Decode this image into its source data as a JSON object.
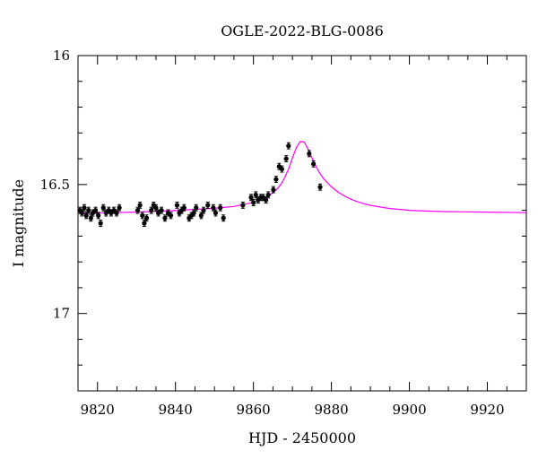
{
  "chart_data": {
    "type": "scatter",
    "title": "OGLE-2022-BLG-0086",
    "xlabel": "HJD - 2450000",
    "ylabel": "I magnitude",
    "xlim": [
      9815,
      9930
    ],
    "ylim": [
      17.3,
      16.0
    ],
    "y_inverted": true,
    "x_major_ticks": [
      9820,
      9840,
      9860,
      9880,
      9900,
      9920
    ],
    "x_tick_labels": [
      "9820",
      "9840",
      "9860",
      "9880",
      "9900",
      "9920"
    ],
    "y_major_ticks": [
      16.0,
      16.5,
      17.0
    ],
    "y_tick_labels": [
      "16",
      "16.5",
      "17"
    ],
    "grid": false,
    "colors": {
      "data": "#000000",
      "model": "#ff00ff"
    },
    "series": [
      {
        "kind": "data",
        "marker": "filled-circle",
        "x": [
          9815.5,
          9816.0,
          9816.6,
          9817.1,
          9817.7,
          9818.3,
          9818.8,
          9819.5,
          9820.2,
          9820.8,
          9821.5,
          9822.2,
          9822.9,
          9823.5,
          9824.2,
          9824.9,
          9825.6,
          9830.3,
          9830.9,
          9831.5,
          9832.0,
          9832.6,
          9833.8,
          9834.4,
          9835.0,
          9835.6,
          9836.4,
          9837.3,
          9838.1,
          9838.8,
          9840.4,
          9841.0,
          9841.6,
          9842.2,
          9843.5,
          9844.1,
          9844.7,
          9845.3,
          9846.6,
          9847.2,
          9848.3,
          9849.7,
          9850.3,
          9851.5,
          9852.3,
          9857.3,
          9859.4,
          9860.0,
          9860.6,
          9861.2,
          9861.9,
          9862.5,
          9863.2,
          9863.8,
          9865.1,
          9865.8,
          9866.6,
          9867.3,
          9868.4,
          9869.0,
          9874.3,
          9875.4,
          9877.1
        ],
        "y": [
          16.6,
          16.61,
          16.59,
          16.62,
          16.6,
          16.63,
          16.61,
          16.6,
          16.62,
          16.65,
          16.59,
          16.61,
          16.6,
          16.61,
          16.6,
          16.61,
          16.59,
          16.6,
          16.58,
          16.62,
          16.65,
          16.63,
          16.6,
          16.58,
          16.59,
          16.61,
          16.6,
          16.63,
          16.61,
          16.62,
          16.58,
          16.61,
          16.6,
          16.59,
          16.63,
          16.62,
          16.61,
          16.59,
          16.62,
          16.6,
          16.58,
          16.59,
          16.61,
          16.59,
          16.63,
          16.58,
          16.55,
          16.57,
          16.54,
          16.56,
          16.55,
          16.55,
          16.56,
          16.54,
          16.52,
          16.48,
          16.43,
          16.44,
          16.4,
          16.35,
          16.38,
          16.42,
          16.51
        ],
        "yerr": 0.012
      },
      {
        "kind": "model",
        "x": [
          9815,
          9830,
          9840,
          9850,
          9855,
          9860,
          9862,
          9864,
          9866,
          9867,
          9868,
          9869,
          9870,
          9871,
          9872,
          9873,
          9874,
          9875,
          9876,
          9877,
          9878,
          9879,
          9880,
          9882,
          9884,
          9886,
          9888,
          9890,
          9895,
          9900,
          9905,
          9910,
          9920,
          9930
        ],
        "y": [
          16.612,
          16.607,
          16.601,
          16.592,
          16.585,
          16.569,
          16.558,
          16.543,
          16.519,
          16.5,
          16.474,
          16.44,
          16.398,
          16.357,
          16.333,
          16.335,
          16.361,
          16.396,
          16.429,
          16.456,
          16.477,
          16.494,
          16.509,
          16.532,
          16.55,
          16.563,
          16.573,
          16.581,
          16.593,
          16.6,
          16.603,
          16.605,
          16.607,
          16.609
        ]
      }
    ]
  }
}
